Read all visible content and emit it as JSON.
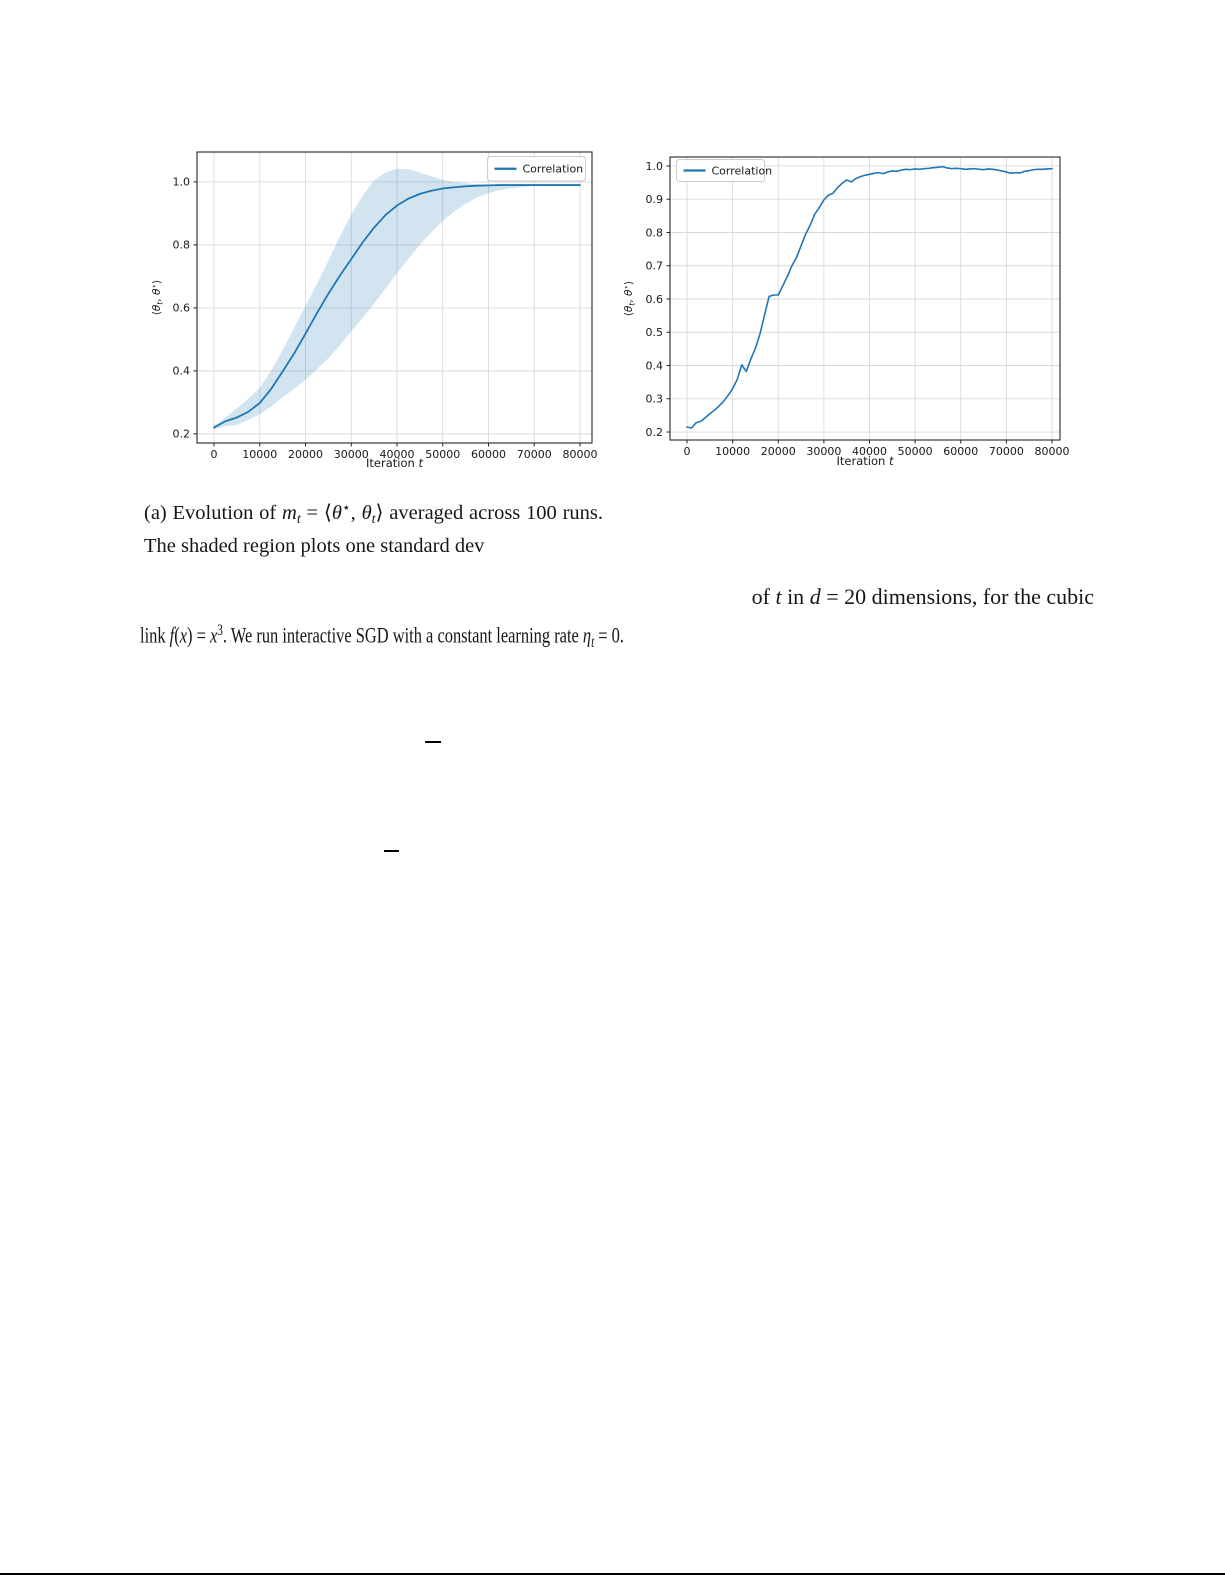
{
  "colors": {
    "line": "#1f77b4",
    "band": "rgba(31,119,180,0.2)",
    "grid": "#dadada",
    "spine": "#262626",
    "tick_text": "#191919",
    "legend_border": "#cccccc",
    "legend_bg": "rgba(255,255,255,0.85)"
  },
  "figure": {
    "caption_a": {
      "segments": [
        [
          "n",
          "(a) Evolution of "
        ],
        [
          "i",
          "m"
        ],
        [
          "subi",
          "t"
        ],
        [
          "n",
          " = ⟨"
        ],
        [
          "i",
          "θ"
        ],
        [
          "sup",
          "⋆"
        ],
        [
          "n",
          ", "
        ],
        [
          "i",
          "θ"
        ],
        [
          "subi",
          "t"
        ],
        [
          "n",
          "⟩ averaged across 100 runs.  The shaded region plots one standard dev"
        ]
      ]
    }
  },
  "body_text": {
    "line1": {
      "segments": [
        [
          "n",
          "of "
        ],
        [
          "i",
          "t"
        ],
        [
          "n",
          " in "
        ],
        [
          "i",
          "d"
        ],
        [
          "n",
          " = 20 dimensions, for the cubic"
        ]
      ]
    },
    "line2": {
      "segments": [
        [
          "n",
          "link "
        ],
        [
          "i",
          "f"
        ],
        [
          "n",
          "("
        ],
        [
          "i",
          "x"
        ],
        [
          "n",
          ") = "
        ],
        [
          "i",
          "x"
        ],
        [
          "sup",
          "3"
        ],
        [
          "n",
          ".  We run interactive SGD with a constant learning rate "
        ],
        [
          "i",
          "η"
        ],
        [
          "subi",
          "t"
        ],
        [
          "n",
          " = 0."
        ]
      ]
    }
  },
  "chart_data": [
    {
      "type": "line",
      "title": "",
      "xlabel": "Iteration t",
      "xlabel_segments": [
        [
          "n",
          "Iteration "
        ],
        [
          "i",
          "t"
        ]
      ],
      "ylabel": "⟨θt, θ⋆⟩",
      "ylabel_segments": [
        [
          "n",
          "⟨"
        ],
        [
          "i",
          "θ"
        ],
        [
          "subi",
          "t"
        ],
        [
          "n",
          ", "
        ],
        [
          "i",
          "θ"
        ],
        [
          "sup",
          "⋆"
        ],
        [
          "n",
          "⟩"
        ]
      ],
      "legend": [
        "Correlation"
      ],
      "legend_position": "upper right",
      "grid": true,
      "xlim": [
        -3716,
        82623
      ],
      "ylim": [
        0.171,
        1.095
      ],
      "xticks": [
        0,
        10000,
        20000,
        30000,
        40000,
        50000,
        60000,
        70000,
        80000
      ],
      "xtick_labels": [
        "0",
        "10000",
        "20000",
        "30000",
        "40000",
        "50000",
        "60000",
        "70000",
        "80000"
      ],
      "yticks": [
        0.2,
        0.4,
        0.6,
        0.8,
        1.0
      ],
      "ytick_labels": [
        "0.2",
        "0.4",
        "0.6",
        "0.8",
        "1.0"
      ],
      "x": [
        0,
        2500,
        5000,
        7500,
        10000,
        12500,
        15000,
        17500,
        20000,
        22500,
        25000,
        27500,
        30000,
        32500,
        35000,
        37500,
        40000,
        42500,
        45000,
        47500,
        50000,
        52500,
        55000,
        57500,
        60000,
        62500,
        65000,
        67500,
        70000,
        72500,
        75000,
        77500,
        80000
      ],
      "series": [
        {
          "name": "Correlation",
          "values": [
            0.22,
            0.24,
            0.252,
            0.27,
            0.298,
            0.343,
            0.398,
            0.455,
            0.518,
            0.583,
            0.645,
            0.702,
            0.755,
            0.808,
            0.855,
            0.895,
            0.925,
            0.947,
            0.962,
            0.972,
            0.979,
            0.983,
            0.986,
            0.988,
            0.989,
            0.99,
            0.99,
            0.99,
            0.99,
            0.99,
            0.99,
            0.99,
            0.99
          ]
        }
      ],
      "band": {
        "meaning": "one standard deviation across 100 runs",
        "lower": [
          0.214,
          0.224,
          0.228,
          0.244,
          0.262,
          0.287,
          0.316,
          0.343,
          0.372,
          0.405,
          0.44,
          0.481,
          0.525,
          0.568,
          0.614,
          0.662,
          0.71,
          0.756,
          0.8,
          0.84,
          0.876,
          0.906,
          0.931,
          0.951,
          0.965,
          0.974,
          0.98,
          0.984,
          0.987,
          0.988,
          0.989,
          0.99,
          0.99
        ],
        "upper": [
          0.226,
          0.252,
          0.281,
          0.312,
          0.346,
          0.401,
          0.466,
          0.536,
          0.606,
          0.676,
          0.751,
          0.826,
          0.896,
          0.956,
          1.005,
          1.03,
          1.042,
          1.04,
          1.03,
          1.018,
          1.007,
          1.0,
          0.996,
          0.993,
          0.992,
          0.991,
          0.991,
          0.99,
          0.99,
          0.99,
          0.99,
          0.99,
          0.99
        ]
      }
    },
    {
      "type": "line",
      "title": "",
      "xlabel": "Iteration t",
      "xlabel_segments": [
        [
          "n",
          "Iteration "
        ],
        [
          "i",
          "t"
        ]
      ],
      "ylabel": "⟨θt, θ⋆⟩",
      "ylabel_segments": [
        [
          "n",
          "⟨"
        ],
        [
          "i",
          "θ"
        ],
        [
          "subi",
          "t"
        ],
        [
          "n",
          ", "
        ],
        [
          "i",
          "θ"
        ],
        [
          "sup",
          "⋆"
        ],
        [
          "n",
          "⟩"
        ]
      ],
      "legend": [
        "Correlation"
      ],
      "legend_position": "upper left",
      "grid": true,
      "xlim": [
        -3726,
        81753
      ],
      "ylim": [
        0.176,
        1.027
      ],
      "xticks": [
        0,
        10000,
        20000,
        30000,
        40000,
        50000,
        60000,
        70000,
        80000
      ],
      "xtick_labels": [
        "0",
        "10000",
        "20000",
        "30000",
        "40000",
        "50000",
        "60000",
        "70000",
        "80000"
      ],
      "yticks": [
        0.2,
        0.3,
        0.4,
        0.5,
        0.6,
        0.7,
        0.8,
        0.9,
        1.0
      ],
      "ytick_labels": [
        "0.2",
        "0.3",
        "0.4",
        "0.5",
        "0.6",
        "0.7",
        "0.8",
        "0.9",
        "1.0"
      ],
      "x": [
        0,
        1000,
        2000,
        3000,
        4000,
        5000,
        6000,
        7000,
        8000,
        9000,
        10000,
        11000,
        12000,
        13000,
        14000,
        15000,
        16000,
        17000,
        18000,
        19000,
        20000,
        21000,
        22000,
        23000,
        24000,
        25000,
        26000,
        27000,
        28000,
        29000,
        30000,
        31000,
        32000,
        33000,
        34000,
        35000,
        36000,
        37000,
        38000,
        39000,
        40000,
        41000,
        42000,
        43000,
        44000,
        45000,
        46000,
        47000,
        48000,
        49000,
        50000,
        51000,
        52000,
        53000,
        54000,
        55000,
        56000,
        57000,
        58000,
        59000,
        60000,
        61000,
        62000,
        63000,
        64000,
        65000,
        66000,
        67000,
        68000,
        69000,
        70000,
        71000,
        72000,
        73000,
        74000,
        75000,
        76000,
        77000,
        78000,
        79000,
        80000
      ],
      "series": [
        {
          "name": "Correlation",
          "values": [
            0.215,
            0.212,
            0.228,
            0.232,
            0.243,
            0.255,
            0.265,
            0.278,
            0.292,
            0.31,
            0.33,
            0.358,
            0.402,
            0.382,
            0.42,
            0.452,
            0.495,
            0.552,
            0.608,
            0.612,
            0.612,
            0.64,
            0.668,
            0.7,
            0.725,
            0.76,
            0.795,
            0.822,
            0.855,
            0.875,
            0.898,
            0.912,
            0.918,
            0.935,
            0.948,
            0.958,
            0.952,
            0.962,
            0.968,
            0.972,
            0.975,
            0.978,
            0.98,
            0.977,
            0.982,
            0.985,
            0.984,
            0.988,
            0.99,
            0.989,
            0.991,
            0.99,
            0.992,
            0.993,
            0.995,
            0.996,
            0.998,
            0.994,
            0.992,
            0.993,
            0.992,
            0.99,
            0.991,
            0.992,
            0.99,
            0.989,
            0.991,
            0.99,
            0.988,
            0.985,
            0.982,
            0.978,
            0.98,
            0.979,
            0.984,
            0.986,
            0.989,
            0.99,
            0.99,
            0.991,
            0.992
          ]
        }
      ]
    }
  ]
}
